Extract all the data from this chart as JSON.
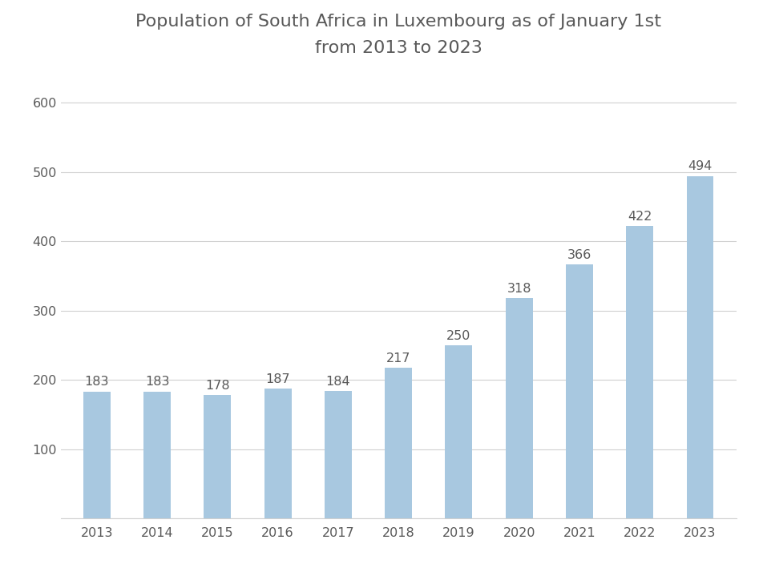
{
  "title": "Population of South Africa in Luxembourg as of January 1st\nfrom 2013 to 2023",
  "categories": [
    "2013",
    "2014",
    "2015",
    "2016",
    "2017",
    "2018",
    "2019",
    "2020",
    "2021",
    "2022",
    "2023"
  ],
  "values": [
    183,
    183,
    178,
    187,
    184,
    217,
    250,
    318,
    366,
    422,
    494
  ],
  "bar_color": "#a8c8e0",
  "label_color": "#595959",
  "title_fontsize": 16,
  "tick_fontsize": 11.5,
  "label_fontsize": 11.5,
  "ylim": [
    0,
    640
  ],
  "yticks": [
    0,
    100,
    200,
    300,
    400,
    500,
    600
  ],
  "background_color": "#ffffff",
  "grid_color": "#d0d0d0",
  "bar_width": 0.45
}
